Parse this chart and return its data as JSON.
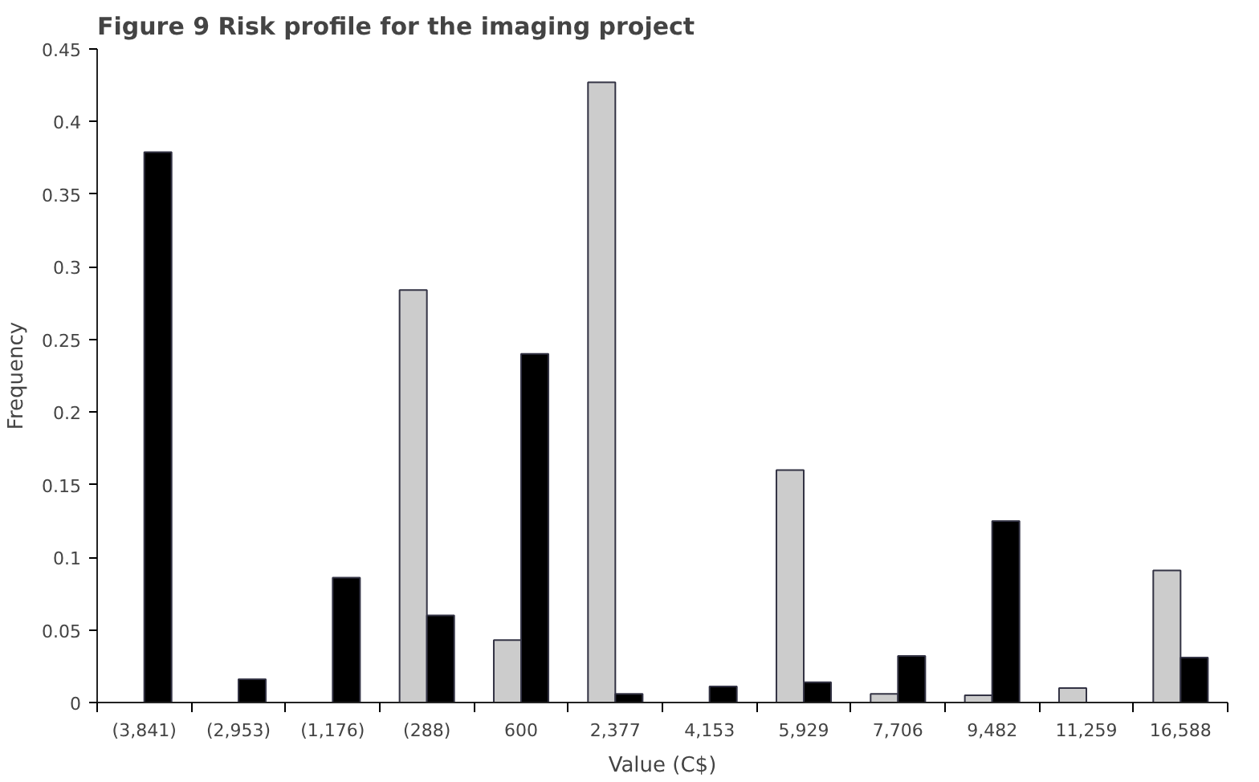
{
  "chart_data": {
    "type": "bar",
    "title": "Figure 9  Risk profile for the imaging project",
    "xlabel": "Value (C$)",
    "ylabel": "Frequency",
    "categories": [
      "(3,841)",
      "(2,953)",
      "(1,176)",
      "(288)",
      "600",
      "2,377",
      "4,153",
      "5,929",
      "7,706",
      "9,482",
      "11,259",
      "16,588"
    ],
    "series": [
      {
        "color": "#cccccc",
        "values": [
          0,
          0,
          0,
          0.284,
          0.043,
          0.427,
          0,
          0.16,
          0.006,
          0.005,
          0.01,
          0.091
        ]
      },
      {
        "color": "#000000",
        "values": [
          0.379,
          0.016,
          0.086,
          0.06,
          0.24,
          0.006,
          0.011,
          0.014,
          0.032,
          0.125,
          0,
          0.031
        ]
      }
    ],
    "ylim": [
      0,
      0.45
    ],
    "yticks": [
      0,
      0.05,
      0.1,
      0.15,
      0.2,
      0.25,
      0.3,
      0.35,
      0.4,
      0.45
    ],
    "grid": false
  }
}
